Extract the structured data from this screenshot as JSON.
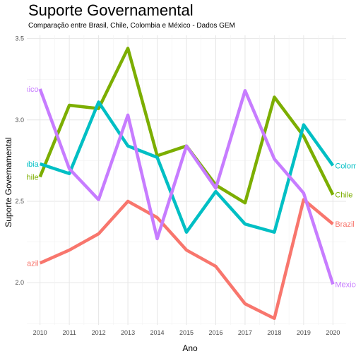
{
  "chart_data": {
    "type": "line",
    "title": "Suporte Governamental",
    "subtitle": "Comparação entre Brasil, Chile, Colombia e México - Dados GEM",
    "xlabel": "Ano",
    "ylabel": "Suporte Governamental",
    "x": [
      2010,
      2011,
      2012,
      2013,
      2014,
      2015,
      2016,
      2017,
      2018,
      2019,
      2020
    ],
    "xlim": [
      2009.55,
      2020.45
    ],
    "ylim": [
      1.74,
      3.52
    ],
    "y_ticks": [
      2.0,
      2.5,
      3.0,
      3.5
    ],
    "grid": true,
    "legend": "none",
    "series": [
      {
        "name": "Brazil",
        "label": "Brazil",
        "color": "#F8766D",
        "values": [
          2.12,
          2.2,
          2.3,
          2.5,
          2.4,
          2.2,
          2.1,
          1.87,
          1.78,
          2.51,
          2.36
        ]
      },
      {
        "name": "Chile",
        "label": "Chile",
        "color": "#7CAE00",
        "values": [
          2.65,
          3.09,
          3.07,
          3.44,
          2.78,
          2.84,
          2.6,
          2.49,
          3.14,
          2.9,
          2.54
        ]
      },
      {
        "name": "Colombia",
        "label": "Colombia",
        "color": "#00BFC4",
        "values": [
          2.73,
          2.67,
          3.11,
          2.84,
          2.77,
          2.31,
          2.56,
          2.36,
          2.31,
          2.97,
          2.72
        ]
      },
      {
        "name": "México",
        "label": "Mexico",
        "color": "#C77CFF",
        "values": [
          3.19,
          2.7,
          2.51,
          3.03,
          2.27,
          2.84,
          2.58,
          3.18,
          2.76,
          2.55,
          1.99
        ]
      }
    ]
  }
}
